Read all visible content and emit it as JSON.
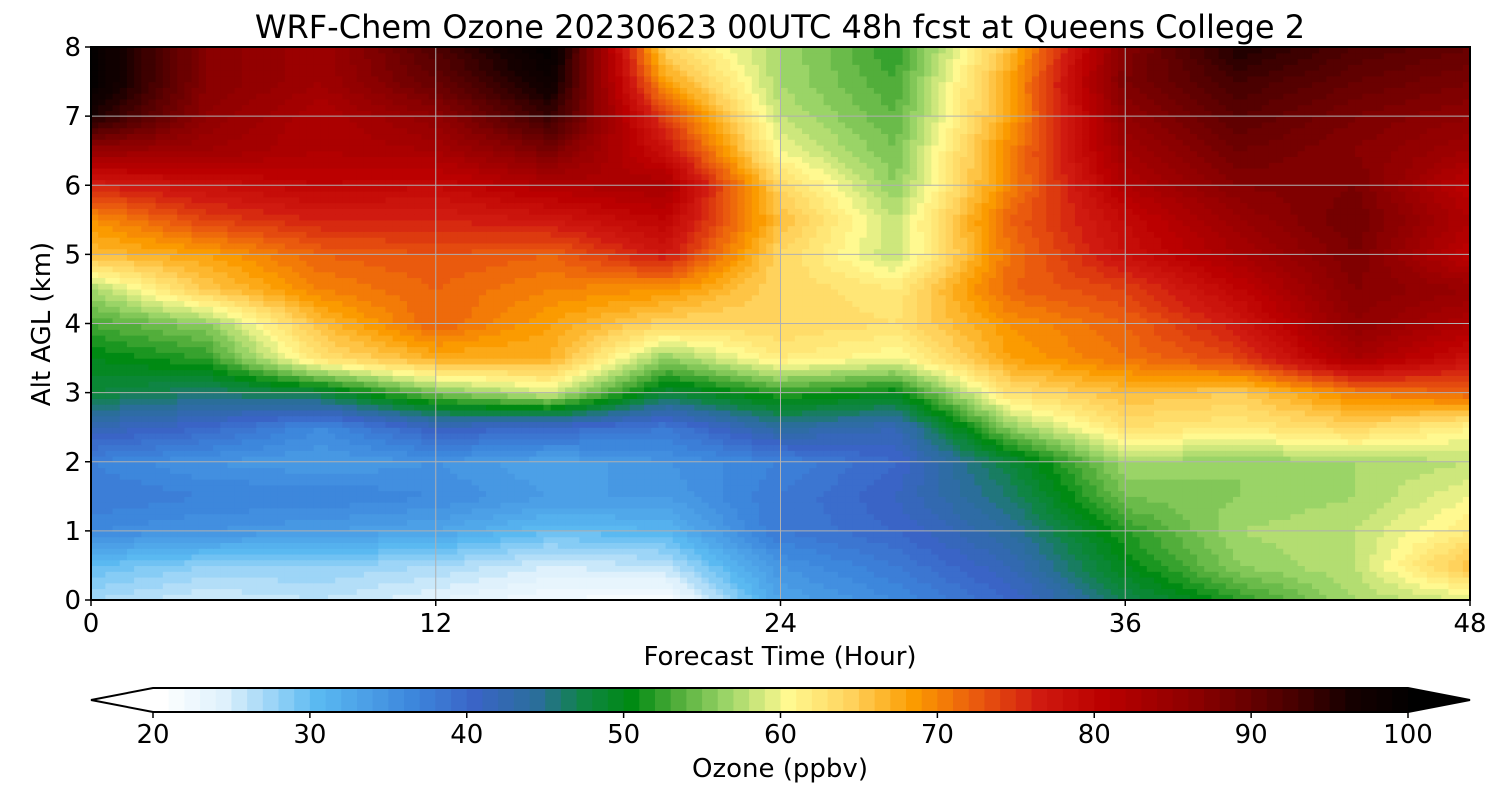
{
  "chart_data": {
    "type": "heatmap",
    "title": "WRF-Chem Ozone  20230623 00UTC 48h fcst at Queens College 2",
    "xlabel": "Forecast Time (Hour)",
    "ylabel": "Alt AGL (km)",
    "xlim": [
      0,
      48
    ],
    "ylim": [
      0,
      8
    ],
    "xticks": [
      0,
      12,
      24,
      36,
      48
    ],
    "yticks": [
      0,
      1,
      2,
      3,
      4,
      5,
      6,
      7,
      8
    ],
    "grid": true,
    "x": [
      0,
      4,
      8,
      12,
      16,
      20,
      24,
      28,
      32,
      36,
      40,
      44,
      48
    ],
    "y": [
      0,
      0.5,
      1,
      1.5,
      2,
      2.5,
      3,
      3.5,
      4,
      4.5,
      5,
      5.5,
      6,
      6.5,
      7,
      7.5,
      8
    ],
    "z": [
      [
        27,
        25,
        26,
        24,
        22,
        21,
        33,
        36,
        40,
        47,
        52,
        57,
        59
      ],
      [
        30,
        28,
        28,
        27,
        25,
        26,
        35,
        38,
        42,
        50,
        56,
        58,
        66
      ],
      [
        36,
        35,
        34,
        33,
        30,
        31,
        38,
        40,
        44,
        52,
        57,
        58,
        62
      ],
      [
        38,
        37,
        37,
        36,
        34,
        34,
        38,
        41,
        46,
        55,
        56,
        57,
        60
      ],
      [
        37,
        35,
        34,
        35,
        33,
        35,
        37,
        40,
        48,
        57,
        56,
        57,
        58
      ],
      [
        42,
        40,
        36,
        41,
        40,
        38,
        44,
        42,
        56,
        63,
        62,
        64,
        61
      ],
      [
        48,
        46,
        48,
        55,
        59,
        48,
        52,
        50,
        63,
        66,
        65,
        70,
        72
      ],
      [
        50,
        52,
        63,
        67,
        67,
        56,
        62,
        60,
        68,
        71,
        74,
        83,
        78
      ],
      [
        53,
        56,
        66,
        72,
        68,
        64,
        64,
        63,
        69,
        72,
        77,
        86,
        82
      ],
      [
        57,
        65,
        70,
        72,
        70,
        69,
        64,
        62,
        72,
        74,
        80,
        87,
        85
      ],
      [
        66,
        68,
        72,
        73,
        72,
        77,
        64,
        58,
        71,
        78,
        83,
        88,
        80
      ],
      [
        69,
        74,
        76,
        76,
        77,
        80,
        66,
        58,
        72,
        79,
        85,
        89,
        82
      ],
      [
        76,
        78,
        80,
        79,
        82,
        83,
        64,
        56,
        70,
        82,
        87,
        88,
        80
      ],
      [
        85,
        84,
        82,
        83,
        88,
        78,
        60,
        55,
        70,
        84,
        89,
        87,
        84
      ],
      [
        96,
        86,
        82,
        86,
        94,
        74,
        58,
        54,
        68,
        86,
        91,
        88,
        86
      ],
      [
        100,
        87,
        84,
        90,
        98,
        68,
        57,
        53,
        68,
        88,
        93,
        90,
        88
      ],
      [
        100,
        87,
        84,
        92,
        100,
        64,
        57,
        52,
        66,
        87,
        96,
        92,
        90
      ]
    ],
    "colorbar": {
      "label": "Ozone  (ppbv)",
      "min": 20,
      "max": 100,
      "step": 1,
      "extend": "both",
      "ticks": [
        20,
        30,
        40,
        50,
        60,
        70,
        80,
        90,
        100
      ],
      "stops": [
        {
          "v": 20,
          "c": "#ffffff"
        },
        {
          "v": 24,
          "c": "#dff1fc"
        },
        {
          "v": 30,
          "c": "#5ab9f1"
        },
        {
          "v": 36,
          "c": "#3d87dc"
        },
        {
          "v": 40,
          "c": "#3a64c6"
        },
        {
          "v": 44,
          "c": "#2a6e9a"
        },
        {
          "v": 47,
          "c": "#0f8544"
        },
        {
          "v": 50,
          "c": "#008a13"
        },
        {
          "v": 53,
          "c": "#52ae3b"
        },
        {
          "v": 56,
          "c": "#9ad467"
        },
        {
          "v": 60,
          "c": "#fff990"
        },
        {
          "v": 64,
          "c": "#ffd25c"
        },
        {
          "v": 68,
          "c": "#fb9b00"
        },
        {
          "v": 72,
          "c": "#ea5a0e"
        },
        {
          "v": 76,
          "c": "#d01a10"
        },
        {
          "v": 80,
          "c": "#bb0000"
        },
        {
          "v": 86,
          "c": "#8b0000"
        },
        {
          "v": 92,
          "c": "#4a0000"
        },
        {
          "v": 96,
          "c": "#150000"
        },
        {
          "v": 100,
          "c": "#000000"
        }
      ]
    }
  }
}
